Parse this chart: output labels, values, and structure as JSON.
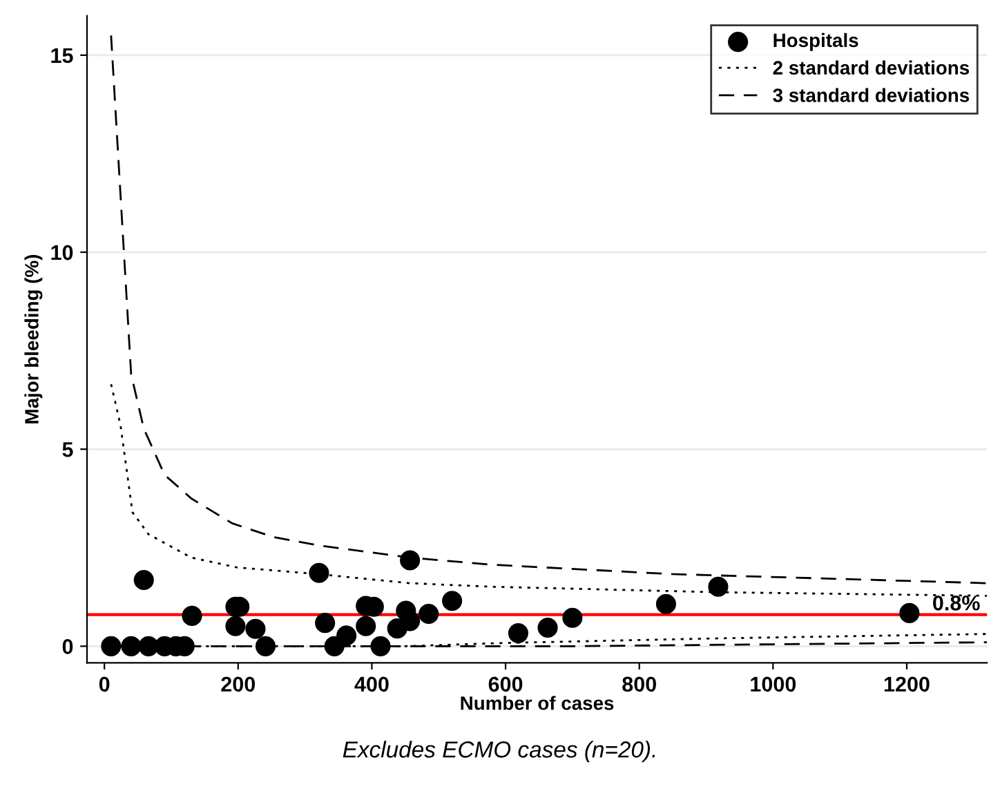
{
  "chart_data": {
    "type": "scatter",
    "xlabel": "Number of cases",
    "ylabel": "Major bleeding (%)",
    "annotations": [
      "Excludes ECMO cases (n=20)."
    ],
    "xlim": [
      -26,
      1320
    ],
    "ylim": [
      -0.42,
      16
    ],
    "xticks": [
      0,
      200,
      400,
      600,
      800,
      1000,
      1200
    ],
    "yticks": [
      0,
      5,
      10,
      15
    ],
    "grid": "y",
    "legend": "top right",
    "ref_lines": [
      {
        "axis": "y",
        "value": 0.8,
        "label": "0.8%",
        "color": "#ff0000"
      }
    ],
    "series": [
      {
        "name": "Hospitals",
        "marker": "circle",
        "color": "#000000",
        "x": [
          10,
          40,
          66,
          90,
          107,
          120,
          59,
          131,
          196,
          202,
          196,
          226,
          241,
          321,
          330,
          344,
          362,
          391,
          403,
          391,
          413,
          438,
          451,
          457,
          457,
          485,
          520,
          619,
          663,
          700,
          840,
          918,
          1204
        ],
        "values": [
          0,
          0,
          0,
          0,
          0,
          0,
          1.68,
          0.77,
          1.0,
          1.0,
          0.51,
          0.44,
          0,
          1.86,
          0.59,
          0,
          0.27,
          1.02,
          1.0,
          0.51,
          0,
          0.45,
          0.9,
          0.64,
          2.18,
          0.82,
          1.15,
          0.33,
          0.47,
          0.72,
          1.07,
          1.51,
          0.84
        ]
      },
      {
        "name": "2 standard deviations",
        "type": "line",
        "line_style": "dotted",
        "color": "#000000",
        "x": [
          10,
          24,
          42,
          66,
          130,
          198,
          320,
          456,
          578,
          918,
          1320
        ],
        "values": [
          6.65,
          5.62,
          3.4,
          2.84,
          2.25,
          2.0,
          1.83,
          1.6,
          1.51,
          1.37,
          1.28
        ]
      },
      {
        "type": "line",
        "line_style": "dotted",
        "color": "#000000",
        "x": [
          10,
          450,
          592,
          918,
          1320
        ],
        "values": [
          0,
          0,
          0.08,
          0.2,
          0.31
        ]
      },
      {
        "name": "3 standard deviations",
        "type": "line",
        "line_style": "dashed",
        "color": "#000000",
        "x": [
          10,
          40,
          59,
          90,
          130,
          191,
          253,
          320,
          456,
          578,
          849,
          1320
        ],
        "values": [
          15.5,
          6.9,
          5.52,
          4.35,
          3.75,
          3.12,
          2.77,
          2.56,
          2.25,
          2.07,
          1.83,
          1.6
        ]
      },
      {
        "type": "line",
        "line_style": "dashed",
        "color": "#000000",
        "x": [
          10,
          700,
          1320
        ],
        "values": [
          0,
          0,
          0.1
        ]
      }
    ]
  }
}
